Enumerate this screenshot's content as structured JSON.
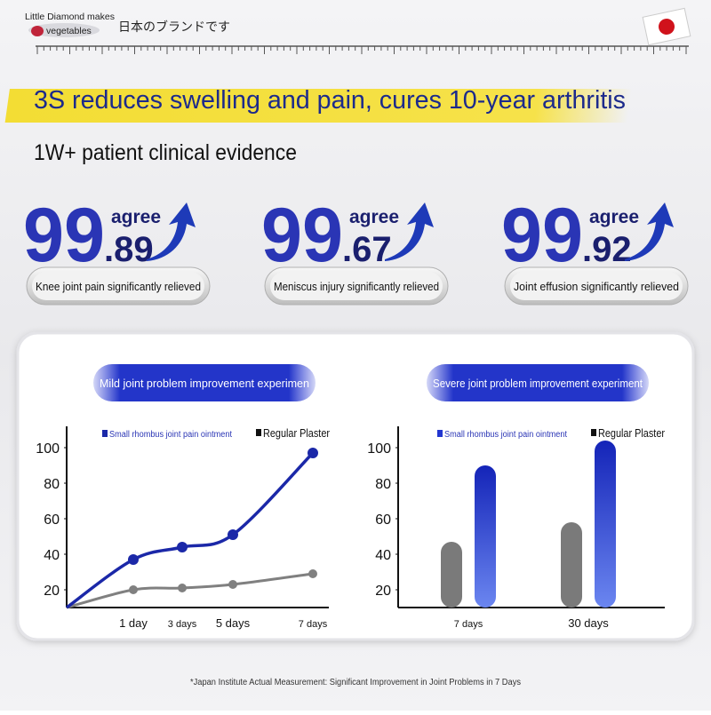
{
  "header": {
    "brand": [
      "Little Diamond makes",
      "vegetables"
    ],
    "tagline": "日本のブランドです"
  },
  "title": "3S reduces swelling and pain, cures 10-year arthritis",
  "subtitle": "1W+ patient clinical evidence",
  "stats": [
    {
      "whole": "99",
      "decimal": ".89",
      "word": "agree",
      "label": "Knee joint pain significantly relieved"
    },
    {
      "whole": "99",
      "decimal": ".67",
      "word": "agree",
      "label": "Meniscus injury significantly relieved"
    },
    {
      "whole": "99",
      "decimal": ".92",
      "word": "agree",
      "label": "Joint effusion significantly relieved"
    }
  ],
  "chart_data": [
    {
      "type": "line",
      "title": "Mild joint problem improvement experimen",
      "categories": [
        null,
        "1 day",
        "3 days",
        "5 days",
        "7 days"
      ],
      "series": [
        {
          "name": "Small rhombus joint pain ointment",
          "color": "#1b28a8",
          "values": [
            10,
            37,
            44,
            51,
            97
          ]
        },
        {
          "name": "Regular Plaster",
          "color": "#808080",
          "values": [
            10,
            20,
            21,
            23,
            29
          ]
        }
      ],
      "ylim": [
        10,
        112
      ],
      "yticks": [
        20,
        40,
        60,
        80,
        100
      ]
    },
    {
      "type": "bar",
      "title": "Severe joint problem improvement experiment",
      "categories": [
        "7 days",
        "30 days"
      ],
      "series": [
        {
          "name": "Small rhombus joint pain ointment",
          "color": "#2236d0",
          "values": [
            90,
            104
          ]
        },
        {
          "name": "Regular Plaster",
          "color": "#7a7a7a",
          "values": [
            47,
            58
          ]
        }
      ],
      "ylim": [
        10,
        112
      ],
      "yticks": [
        20,
        40,
        60,
        80,
        100
      ]
    }
  ],
  "footnote": "*Japan Institute Actual Measurement: Significant Improvement in Joint Problems in 7 Days"
}
